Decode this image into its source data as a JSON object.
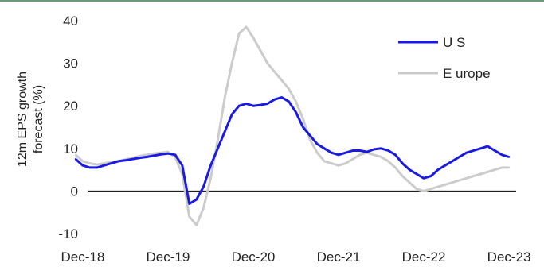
{
  "chart_data": {
    "type": "line",
    "title": "",
    "ylabel": "12m EPS growth forecast (%)",
    "ylabel_lines": [
      "12m EPS  growth",
      "forecast (%)"
    ],
    "xlabel": "",
    "ylim": [
      -10,
      40
    ],
    "yticks": [
      -10,
      0,
      10,
      20,
      30,
      40
    ],
    "xlim": [
      "2018-11",
      "2024-01"
    ],
    "xticks": [
      {
        "date": "2018-12",
        "label": "Dec-18"
      },
      {
        "date": "2019-12",
        "label": "Dec-19"
      },
      {
        "date": "2020-12",
        "label": "Dec-20"
      },
      {
        "date": "2021-12",
        "label": "Dec-21"
      },
      {
        "date": "2022-12",
        "label": "Dec-22"
      },
      {
        "date": "2023-12",
        "label": "Dec-23"
      }
    ],
    "grid": false,
    "zero_line": true,
    "legend_position": "top-right",
    "series": [
      {
        "name": "US",
        "label": "U S",
        "color": "#1a1ae6",
        "points": [
          [
            "2018-11",
            7.5
          ],
          [
            "2018-12",
            6.0
          ],
          [
            "2019-01",
            5.5
          ],
          [
            "2019-02",
            5.5
          ],
          [
            "2019-03",
            6.0
          ],
          [
            "2019-04",
            6.5
          ],
          [
            "2019-05",
            7.0
          ],
          [
            "2019-06",
            7.2
          ],
          [
            "2019-07",
            7.5
          ],
          [
            "2019-08",
            7.8
          ],
          [
            "2019-09",
            8.0
          ],
          [
            "2019-10",
            8.3
          ],
          [
            "2019-11",
            8.6
          ],
          [
            "2019-12",
            8.8
          ],
          [
            "2020-01",
            8.5
          ],
          [
            "2020-02",
            6.0
          ],
          [
            "2020-03",
            -3.0
          ],
          [
            "2020-04",
            -2.0
          ],
          [
            "2020-05",
            1.0
          ],
          [
            "2020-06",
            6.0
          ],
          [
            "2020-07",
            10.0
          ],
          [
            "2020-08",
            14.0
          ],
          [
            "2020-09",
            18.0
          ],
          [
            "2020-10",
            20.0
          ],
          [
            "2020-11",
            20.5
          ],
          [
            "2020-12",
            20.0
          ],
          [
            "2021-01",
            20.2
          ],
          [
            "2021-02",
            20.5
          ],
          [
            "2021-03",
            21.5
          ],
          [
            "2021-04",
            22.0
          ],
          [
            "2021-05",
            21.0
          ],
          [
            "2021-06",
            18.5
          ],
          [
            "2021-07",
            15.0
          ],
          [
            "2021-08",
            13.0
          ],
          [
            "2021-09",
            11.0
          ],
          [
            "2021-10",
            10.0
          ],
          [
            "2021-11",
            9.0
          ],
          [
            "2021-12",
            8.5
          ],
          [
            "2022-01",
            9.0
          ],
          [
            "2022-02",
            9.5
          ],
          [
            "2022-03",
            9.5
          ],
          [
            "2022-04",
            9.2
          ],
          [
            "2022-05",
            9.8
          ],
          [
            "2022-06",
            10.0
          ],
          [
            "2022-07",
            9.5
          ],
          [
            "2022-08",
            8.5
          ],
          [
            "2022-09",
            6.5
          ],
          [
            "2022-10",
            5.0
          ],
          [
            "2022-11",
            4.0
          ],
          [
            "2022-12",
            3.0
          ],
          [
            "2023-01",
            3.5
          ],
          [
            "2023-02",
            5.0
          ],
          [
            "2023-03",
            6.0
          ],
          [
            "2023-04",
            7.0
          ],
          [
            "2023-05",
            8.0
          ],
          [
            "2023-06",
            9.0
          ],
          [
            "2023-07",
            9.5
          ],
          [
            "2023-08",
            10.0
          ],
          [
            "2023-09",
            10.5
          ],
          [
            "2023-10",
            9.5
          ],
          [
            "2023-11",
            8.5
          ],
          [
            "2023-12",
            8.0
          ]
        ]
      },
      {
        "name": "Europe",
        "label": "E urope",
        "color": "#cccccc",
        "points": [
          [
            "2018-11",
            8.5
          ],
          [
            "2018-12",
            7.0
          ],
          [
            "2019-01",
            6.5
          ],
          [
            "2019-02",
            6.2
          ],
          [
            "2019-03",
            6.5
          ],
          [
            "2019-04",
            6.8
          ],
          [
            "2019-05",
            7.0
          ],
          [
            "2019-06",
            7.4
          ],
          [
            "2019-07",
            7.8
          ],
          [
            "2019-08",
            8.2
          ],
          [
            "2019-09",
            8.5
          ],
          [
            "2019-10",
            8.8
          ],
          [
            "2019-11",
            9.0
          ],
          [
            "2019-12",
            9.2
          ],
          [
            "2020-01",
            8.0
          ],
          [
            "2020-02",
            4.0
          ],
          [
            "2020-03",
            -6.0
          ],
          [
            "2020-04",
            -8.0
          ],
          [
            "2020-05",
            -4.0
          ],
          [
            "2020-06",
            3.0
          ],
          [
            "2020-07",
            12.0
          ],
          [
            "2020-08",
            22.0
          ],
          [
            "2020-09",
            30.0
          ],
          [
            "2020-10",
            37.0
          ],
          [
            "2020-11",
            38.5
          ],
          [
            "2020-12",
            36.0
          ],
          [
            "2021-01",
            33.0
          ],
          [
            "2021-02",
            30.0
          ],
          [
            "2021-03",
            28.0
          ],
          [
            "2021-04",
            26.0
          ],
          [
            "2021-05",
            24.0
          ],
          [
            "2021-06",
            21.0
          ],
          [
            "2021-07",
            17.0
          ],
          [
            "2021-08",
            12.0
          ],
          [
            "2021-09",
            9.0
          ],
          [
            "2021-10",
            7.0
          ],
          [
            "2021-11",
            6.5
          ],
          [
            "2021-12",
            6.0
          ],
          [
            "2022-01",
            6.5
          ],
          [
            "2022-02",
            7.5
          ],
          [
            "2022-03",
            8.5
          ],
          [
            "2022-04",
            9.0
          ],
          [
            "2022-05",
            8.5
          ],
          [
            "2022-06",
            8.0
          ],
          [
            "2022-07",
            7.0
          ],
          [
            "2022-08",
            5.5
          ],
          [
            "2022-09",
            3.5
          ],
          [
            "2022-10",
            2.0
          ],
          [
            "2022-11",
            0.5
          ],
          [
            "2022-12",
            0.0
          ],
          [
            "2023-01",
            0.5
          ],
          [
            "2023-02",
            1.0
          ],
          [
            "2023-03",
            1.5
          ],
          [
            "2023-04",
            2.0
          ],
          [
            "2023-05",
            2.5
          ],
          [
            "2023-06",
            3.0
          ],
          [
            "2023-07",
            3.5
          ],
          [
            "2023-08",
            4.0
          ],
          [
            "2023-09",
            4.5
          ],
          [
            "2023-10",
            5.0
          ],
          [
            "2023-11",
            5.5
          ],
          [
            "2023-12",
            5.5
          ]
        ]
      }
    ]
  }
}
